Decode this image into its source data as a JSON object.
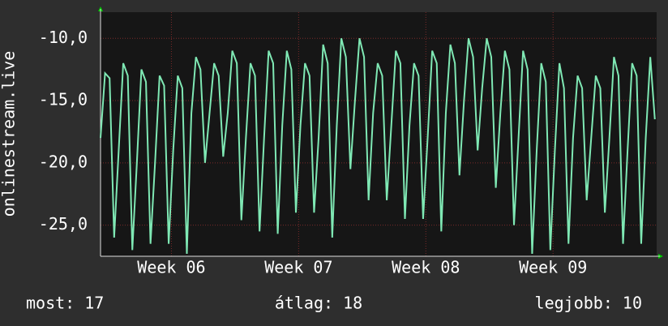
{
  "chart_data": {
    "type": "line",
    "y_label": "onlinestream.live",
    "x": [
      0,
      0.25,
      0.5,
      0.75,
      1,
      1.25,
      1.5,
      1.75,
      2,
      2.25,
      2.5,
      2.75,
      3,
      3.25,
      3.5,
      3.75,
      4,
      4.25,
      4.5,
      4.75,
      5,
      5.25,
      5.5,
      5.75,
      6,
      6.25,
      6.5,
      6.75,
      7,
      7.25,
      7.5,
      7.75,
      8,
      8.25,
      8.5,
      8.75,
      9,
      9.25,
      9.5,
      9.75,
      10,
      10.25,
      10.5,
      10.75,
      11,
      11.25,
      11.5,
      11.75,
      12,
      12.25,
      12.5,
      12.75,
      13,
      13.25,
      13.5,
      13.75,
      14,
      14.25,
      14.5,
      14.75,
      15,
      15.25,
      15.5,
      15.75,
      16,
      16.25,
      16.5,
      16.75,
      17,
      17.25,
      17.5,
      17.75,
      18,
      18.25,
      18.5,
      18.75,
      19,
      19.25,
      19.5,
      19.75,
      20,
      20.25,
      20.5,
      20.75,
      21,
      21.25,
      21.5,
      21.75,
      22,
      22.25,
      22.5,
      22.75,
      23,
      23.25,
      23.5,
      23.75,
      24,
      24.25,
      24.5,
      24.75,
      25,
      25.25,
      25.5,
      25.75,
      26,
      26.25,
      26.5,
      26.75,
      27,
      27.25,
      27.5,
      27.75,
      28,
      28.25,
      28.5,
      28.75,
      29,
      29.25,
      29.5,
      29.75,
      30,
      30.25,
      30.5
    ],
    "series": [
      {
        "color": "#7fe8b4",
        "values": [
          -18,
          -12.8,
          -13.2,
          -26,
          -19,
          -12,
          -13,
          -27,
          -20,
          -12.5,
          -13.5,
          -26.5,
          -20,
          -13,
          -13.8,
          -26.5,
          -19,
          -13,
          -14,
          -27.3,
          -16,
          -11.5,
          -12.5,
          -20,
          -16,
          -12,
          -13,
          -19.5,
          -16,
          -11,
          -12,
          -24.6,
          -18,
          -12,
          -13,
          -25.5,
          -18,
          -11,
          -12,
          -25.7,
          -17,
          -11,
          -12.5,
          -24,
          -17,
          -12,
          -13,
          -24,
          -18,
          -10.5,
          -12,
          -26,
          -17,
          -10,
          -11.5,
          -20.5,
          -15,
          -10,
          -11.5,
          -23,
          -16,
          -12,
          -13,
          -23,
          -17,
          -11,
          -12,
          -24.5,
          -17,
          -12,
          -13,
          -24.5,
          -18,
          -11,
          -12,
          -25.5,
          -16,
          -10.5,
          -12,
          -21,
          -15,
          -10,
          -11.5,
          -19,
          -14,
          -10,
          -11.5,
          -22,
          -16,
          -11,
          -12.5,
          -25,
          -18,
          -11,
          -12.5,
          -27.3,
          -19,
          -12,
          -13.5,
          -27,
          -19,
          -12,
          -14,
          -26.5,
          -18,
          -13,
          -14,
          -23,
          -18,
          -13,
          -14,
          -24,
          -18,
          -11.5,
          -13,
          -26.5,
          -19,
          -12,
          -13,
          -26.5,
          -18,
          -11.5,
          -16.5
        ]
      }
    ],
    "xlim": [
      0,
      30.6
    ],
    "xticks": [
      {
        "value": 3.9,
        "label": "Week 06"
      },
      {
        "value": 10.9,
        "label": "Week 07"
      },
      {
        "value": 17.9,
        "label": "Week 08"
      },
      {
        "value": 24.9,
        "label": "Week 09"
      }
    ],
    "ylim": [
      -27.5,
      -7.9
    ],
    "yticks": [
      {
        "value": -10,
        "label": "-10,0"
      },
      {
        "value": -15,
        "label": "-15,0"
      },
      {
        "value": -20,
        "label": "-20,0"
      },
      {
        "value": -25,
        "label": "-25,0"
      }
    ],
    "grid": true,
    "stats": [
      "most: 17",
      "átlag: 18",
      "legjobb: 10"
    ]
  }
}
